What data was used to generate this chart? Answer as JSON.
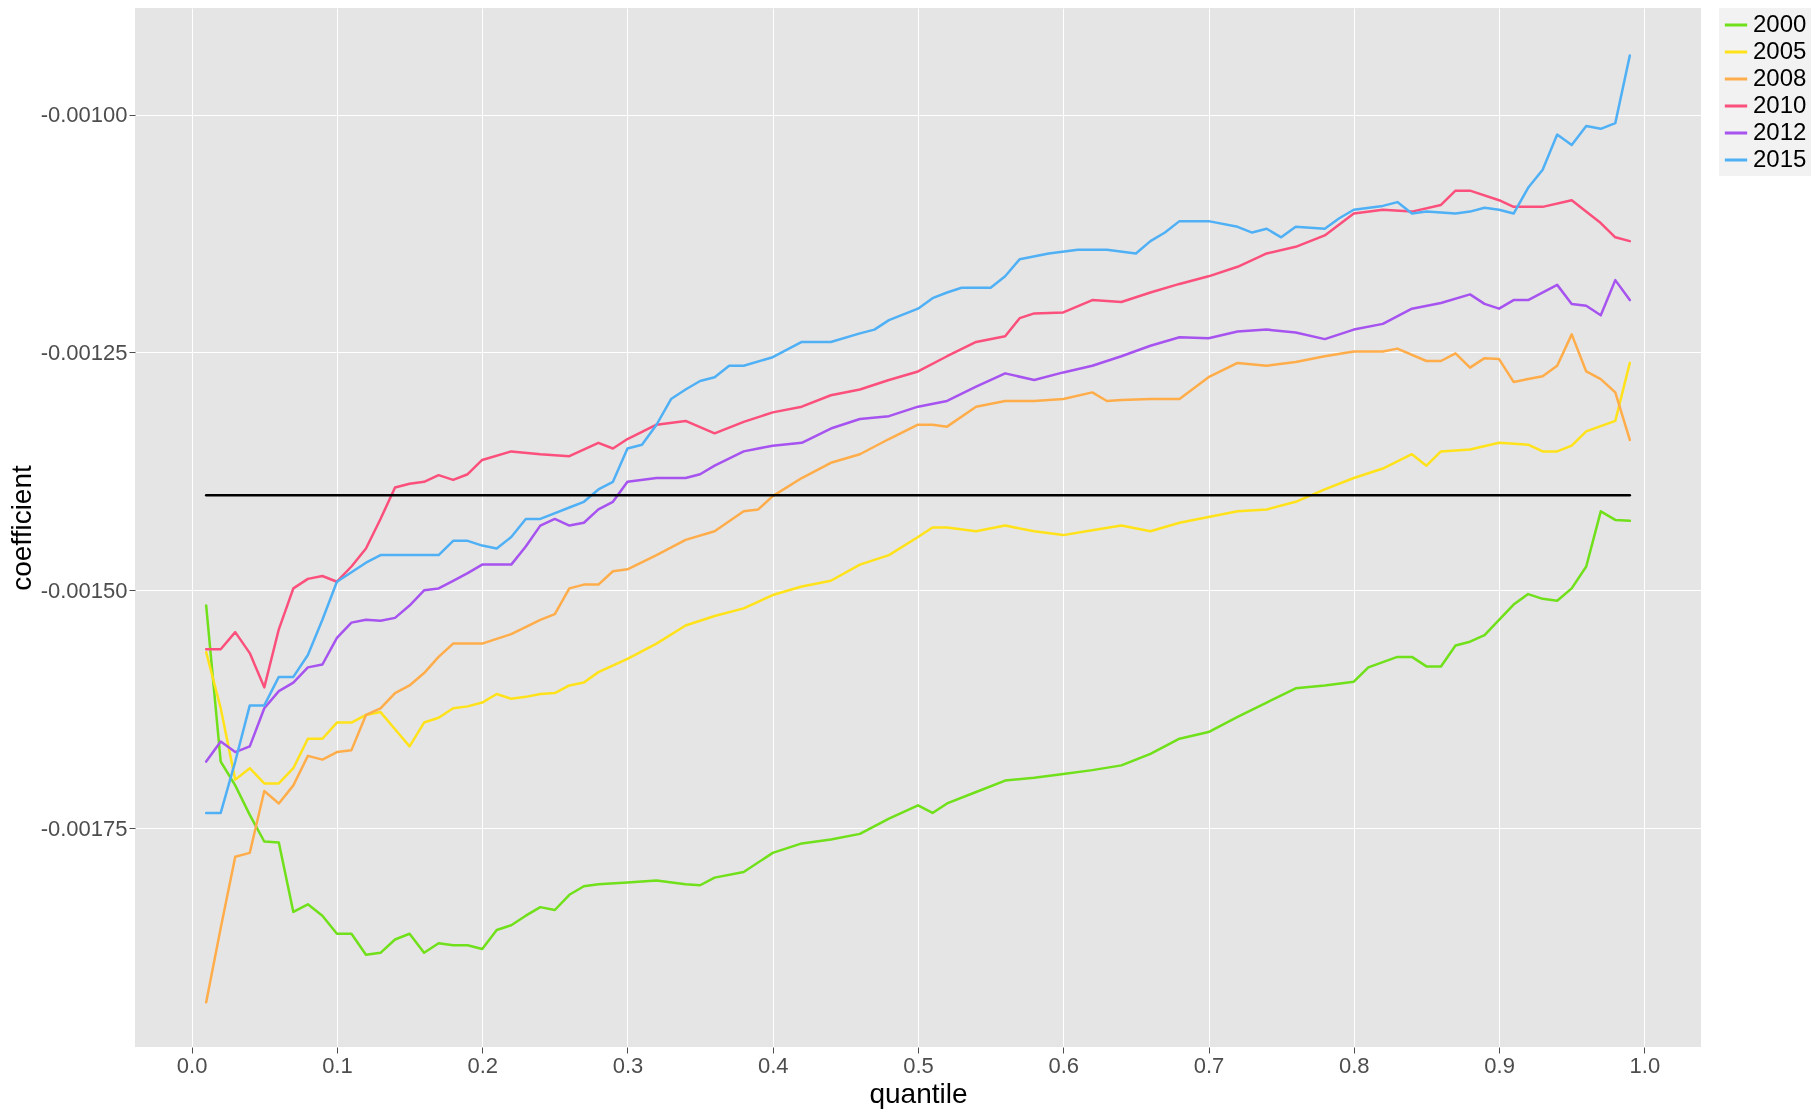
{
  "chart_data": {
    "type": "line",
    "xlabel": "quantile",
    "ylabel": "coefficient",
    "xlim": [
      -0.039,
      1.039
    ],
    "ylim": [
      -0.00198,
      -0.000888
    ],
    "xticks": [
      {
        "value": 0,
        "label": "0.0"
      },
      0.1,
      0.2,
      0.3,
      0.4,
      0.5,
      0.6,
      0.7,
      0.8,
      0.9,
      {
        "value": 1,
        "label": "1.0"
      }
    ],
    "yticks": [
      {
        "value": -0.00175,
        "label": "-0.00175"
      },
      {
        "value": -0.0015,
        "label": "-0.00150"
      },
      {
        "value": -0.00125,
        "label": "-0.00125"
      },
      {
        "value": -0.001,
        "label": "-0.00100"
      }
    ],
    "grid": true,
    "legend": "right",
    "series": [
      {
        "name": "2000",
        "color": "#70e01a",
        "x": [
          0.01,
          0.02,
          0.03,
          0.04,
          0.05,
          0.06,
          0.07,
          0.08,
          0.09,
          0.1,
          0.11,
          0.12,
          0.13,
          0.14,
          0.15,
          0.16,
          0.17,
          0.18,
          0.19,
          0.2,
          0.21,
          0.22,
          0.23,
          0.24,
          0.25,
          0.26,
          0.27,
          0.28,
          0.3,
          0.32,
          0.34,
          0.35,
          0.36,
          0.38,
          0.4,
          0.42,
          0.44,
          0.46,
          0.48,
          0.5,
          0.51,
          0.52,
          0.54,
          0.56,
          0.58,
          0.6,
          0.62,
          0.64,
          0.66,
          0.68,
          0.7,
          0.72,
          0.74,
          0.76,
          0.78,
          0.8,
          0.81,
          0.83,
          0.84,
          0.85,
          0.86,
          0.87,
          0.88,
          0.89,
          0.9,
          0.91,
          0.92,
          0.93,
          0.94,
          0.95,
          0.96,
          0.97,
          0.98,
          0.99
        ],
        "values": [
          -0.001516,
          -0.00168,
          -0.001705,
          -0.001736,
          -0.001764,
          -0.001765,
          -0.001838,
          -0.00183,
          -0.001842,
          -0.001861,
          -0.001861,
          -0.001883,
          -0.001881,
          -0.001867,
          -0.001861,
          -0.001881,
          -0.001871,
          -0.001873,
          -0.001873,
          -0.001877,
          -0.001857,
          -0.001852,
          -0.001842,
          -0.001833,
          -0.001836,
          -0.00182,
          -0.001811,
          -0.001809,
          -0.001807,
          -0.001805,
          -0.001809,
          -0.00181,
          -0.001802,
          -0.001796,
          -0.001776,
          -0.001766,
          -0.001762,
          -0.001756,
          -0.00174,
          -0.001726,
          -0.001734,
          -0.001724,
          -0.001712,
          -0.0017,
          -0.001697,
          -0.001693,
          -0.001689,
          -0.001684,
          -0.001672,
          -0.001656,
          -0.001649,
          -0.001633,
          -0.001618,
          -0.001603,
          -0.0016,
          -0.001596,
          -0.001581,
          -0.00157,
          -0.00157,
          -0.00158,
          -0.00158,
          -0.001558,
          -0.001554,
          -0.001547,
          -0.001531,
          -0.001515,
          -0.001504,
          -0.001509,
          -0.001511,
          -0.001498,
          -0.001475,
          -0.001417,
          -0.001426,
          -0.001427
        ]
      },
      {
        "name": "2005",
        "color": "#ffe21a",
        "x": [
          0.01,
          0.02,
          0.03,
          0.04,
          0.05,
          0.06,
          0.07,
          0.08,
          0.09,
          0.1,
          0.11,
          0.12,
          0.13,
          0.14,
          0.15,
          0.16,
          0.17,
          0.18,
          0.19,
          0.2,
          0.21,
          0.22,
          0.23,
          0.24,
          0.25,
          0.26,
          0.27,
          0.28,
          0.3,
          0.32,
          0.34,
          0.36,
          0.38,
          0.4,
          0.42,
          0.44,
          0.46,
          0.48,
          0.5,
          0.51,
          0.52,
          0.54,
          0.56,
          0.58,
          0.6,
          0.62,
          0.64,
          0.66,
          0.68,
          0.7,
          0.72,
          0.74,
          0.76,
          0.78,
          0.8,
          0.82,
          0.84,
          0.85,
          0.86,
          0.88,
          0.9,
          0.92,
          0.93,
          0.94,
          0.95,
          0.96,
          0.98,
          0.99
        ],
        "values": [
          -0.001565,
          -0.001624,
          -0.001699,
          -0.001687,
          -0.001703,
          -0.001703,
          -0.001687,
          -0.001656,
          -0.001656,
          -0.001639,
          -0.001639,
          -0.001631,
          -0.001628,
          -0.001646,
          -0.001664,
          -0.001639,
          -0.001634,
          -0.001624,
          -0.001622,
          -0.001618,
          -0.001609,
          -0.001614,
          -0.001612,
          -0.001609,
          -0.001608,
          -0.0016,
          -0.001597,
          -0.001586,
          -0.001572,
          -0.001556,
          -0.001537,
          -0.001527,
          -0.001519,
          -0.001505,
          -0.001496,
          -0.00149,
          -0.001473,
          -0.001463,
          -0.001444,
          -0.001434,
          -0.001434,
          -0.001438,
          -0.001432,
          -0.001438,
          -0.001442,
          -0.001437,
          -0.001432,
          -0.001438,
          -0.001429,
          -0.001423,
          -0.001417,
          -0.001415,
          -0.001407,
          -0.001394,
          -0.001382,
          -0.001372,
          -0.001357,
          -0.001369,
          -0.001354,
          -0.001352,
          -0.001345,
          -0.001347,
          -0.001354,
          -0.001354,
          -0.001348,
          -0.001333,
          -0.001322,
          -0.001261
        ]
      },
      {
        "name": "2008",
        "color": "#ffad4a",
        "x": [
          0.01,
          0.02,
          0.03,
          0.04,
          0.05,
          0.06,
          0.07,
          0.08,
          0.09,
          0.1,
          0.11,
          0.12,
          0.13,
          0.14,
          0.15,
          0.16,
          0.17,
          0.18,
          0.2,
          0.22,
          0.24,
          0.25,
          0.26,
          0.27,
          0.28,
          0.29,
          0.3,
          0.32,
          0.34,
          0.36,
          0.38,
          0.39,
          0.4,
          0.42,
          0.44,
          0.46,
          0.48,
          0.5,
          0.51,
          0.52,
          0.54,
          0.56,
          0.58,
          0.6,
          0.62,
          0.63,
          0.64,
          0.66,
          0.68,
          0.7,
          0.72,
          0.74,
          0.76,
          0.78,
          0.8,
          0.82,
          0.83,
          0.85,
          0.86,
          0.87,
          0.88,
          0.89,
          0.9,
          0.91,
          0.92,
          0.93,
          0.94,
          0.95,
          0.96,
          0.97,
          0.98,
          0.99
        ],
        "values": [
          -0.001933,
          -0.001855,
          -0.00178,
          -0.001776,
          -0.001711,
          -0.001724,
          -0.001705,
          -0.001674,
          -0.001678,
          -0.00167,
          -0.001668,
          -0.001631,
          -0.001624,
          -0.001608,
          -0.0016,
          -0.001587,
          -0.00157,
          -0.001556,
          -0.001556,
          -0.001546,
          -0.001531,
          -0.001525,
          -0.001498,
          -0.001494,
          -0.001494,
          -0.00148,
          -0.001478,
          -0.001463,
          -0.001447,
          -0.001438,
          -0.001417,
          -0.001415,
          -0.001401,
          -0.001382,
          -0.001366,
          -0.001357,
          -0.001341,
          -0.001326,
          -0.001326,
          -0.001328,
          -0.001307,
          -0.001301,
          -0.001301,
          -0.001299,
          -0.001292,
          -0.001301,
          -0.0013,
          -0.001299,
          -0.001299,
          -0.001276,
          -0.001261,
          -0.001264,
          -0.00126,
          -0.001254,
          -0.001249,
          -0.001249,
          -0.001246,
          -0.001259,
          -0.001259,
          -0.001251,
          -0.001266,
          -0.001256,
          -0.001257,
          -0.001281,
          -0.001278,
          -0.001275,
          -0.001264,
          -0.001231,
          -0.00127,
          -0.001278,
          -0.001292,
          -0.001342
        ]
      },
      {
        "name": "2010",
        "color": "#fb4f7c",
        "x": [
          0.01,
          0.02,
          0.03,
          0.04,
          0.05,
          0.06,
          0.07,
          0.08,
          0.09,
          0.1,
          0.11,
          0.12,
          0.13,
          0.14,
          0.15,
          0.16,
          0.17,
          0.18,
          0.19,
          0.2,
          0.22,
          0.24,
          0.26,
          0.28,
          0.29,
          0.3,
          0.32,
          0.34,
          0.36,
          0.38,
          0.4,
          0.42,
          0.44,
          0.46,
          0.48,
          0.5,
          0.52,
          0.54,
          0.56,
          0.57,
          0.58,
          0.6,
          0.62,
          0.64,
          0.66,
          0.68,
          0.7,
          0.72,
          0.74,
          0.76,
          0.78,
          0.8,
          0.82,
          0.84,
          0.86,
          0.87,
          0.88,
          0.9,
          0.91,
          0.93,
          0.95,
          0.97,
          0.98,
          0.99
        ],
        "values": [
          -0.001562,
          -0.001562,
          -0.001544,
          -0.001566,
          -0.001602,
          -0.001541,
          -0.001498,
          -0.001488,
          -0.001485,
          -0.001491,
          -0.001475,
          -0.001456,
          -0.001425,
          -0.001392,
          -0.001388,
          -0.001386,
          -0.001379,
          -0.001384,
          -0.001378,
          -0.001363,
          -0.001354,
          -0.001357,
          -0.001359,
          -0.001345,
          -0.001351,
          -0.001341,
          -0.001326,
          -0.001322,
          -0.001335,
          -0.001323,
          -0.001313,
          -0.001307,
          -0.001295,
          -0.001289,
          -0.001279,
          -0.00127,
          -0.001254,
          -0.001239,
          -0.001233,
          -0.001214,
          -0.001209,
          -0.001208,
          -0.001195,
          -0.001197,
          -0.001187,
          -0.001178,
          -0.00117,
          -0.00116,
          -0.001146,
          -0.001139,
          -0.001127,
          -0.001104,
          -0.0011,
          -0.001102,
          -0.001095,
          -0.00108,
          -0.00108,
          -0.00109,
          -0.001097,
          -0.001097,
          -0.00109,
          -0.001114,
          -0.001129,
          -0.001133
        ]
      },
      {
        "name": "2012",
        "color": "#a653ef",
        "x": [
          0.01,
          0.02,
          0.03,
          0.04,
          0.05,
          0.06,
          0.07,
          0.08,
          0.09,
          0.1,
          0.11,
          0.12,
          0.13,
          0.14,
          0.15,
          0.16,
          0.17,
          0.18,
          0.19,
          0.2,
          0.22,
          0.23,
          0.24,
          0.25,
          0.26,
          0.27,
          0.28,
          0.29,
          0.3,
          0.32,
          0.34,
          0.35,
          0.36,
          0.38,
          0.4,
          0.42,
          0.44,
          0.46,
          0.48,
          0.5,
          0.52,
          0.54,
          0.56,
          0.58,
          0.6,
          0.62,
          0.64,
          0.66,
          0.68,
          0.7,
          0.72,
          0.74,
          0.76,
          0.78,
          0.8,
          0.82,
          0.84,
          0.86,
          0.88,
          0.89,
          0.9,
          0.91,
          0.92,
          0.94,
          0.95,
          0.96,
          0.97,
          0.98,
          0.99
        ],
        "values": [
          -0.00168,
          -0.001659,
          -0.00167,
          -0.001664,
          -0.001624,
          -0.001606,
          -0.001597,
          -0.001581,
          -0.001578,
          -0.00155,
          -0.001534,
          -0.001531,
          -0.001532,
          -0.001529,
          -0.001516,
          -0.0015,
          -0.001498,
          -0.00149,
          -0.001482,
          -0.001473,
          -0.001473,
          -0.001454,
          -0.001432,
          -0.001425,
          -0.001432,
          -0.001429,
          -0.001415,
          -0.001407,
          -0.001386,
          -0.001382,
          -0.001382,
          -0.001378,
          -0.001369,
          -0.001354,
          -0.001348,
          -0.001345,
          -0.00133,
          -0.00132,
          -0.001317,
          -0.001307,
          -0.001301,
          -0.001286,
          -0.001272,
          -0.001279,
          -0.001271,
          -0.001264,
          -0.001254,
          -0.001243,
          -0.001234,
          -0.001235,
          -0.001228,
          -0.001226,
          -0.001229,
          -0.001236,
          -0.001226,
          -0.00122,
          -0.001204,
          -0.001198,
          -0.001189,
          -0.001199,
          -0.001204,
          -0.001195,
          -0.001195,
          -0.001179,
          -0.001199,
          -0.001201,
          -0.001211,
          -0.001174,
          -0.001195
        ]
      },
      {
        "name": "2015",
        "color": "#4fb0f5",
        "x": [
          0.01,
          0.02,
          0.03,
          0.04,
          0.05,
          0.06,
          0.07,
          0.08,
          0.09,
          0.1,
          0.11,
          0.12,
          0.13,
          0.14,
          0.15,
          0.16,
          0.17,
          0.18,
          0.19,
          0.2,
          0.21,
          0.22,
          0.23,
          0.24,
          0.26,
          0.27,
          0.28,
          0.29,
          0.3,
          0.31,
          0.32,
          0.33,
          0.34,
          0.35,
          0.36,
          0.37,
          0.38,
          0.4,
          0.42,
          0.44,
          0.46,
          0.47,
          0.48,
          0.5,
          0.51,
          0.52,
          0.53,
          0.55,
          0.56,
          0.57,
          0.59,
          0.61,
          0.63,
          0.65,
          0.66,
          0.67,
          0.68,
          0.7,
          0.72,
          0.73,
          0.74,
          0.75,
          0.76,
          0.78,
          0.79,
          0.8,
          0.82,
          0.83,
          0.84,
          0.85,
          0.87,
          0.88,
          0.89,
          0.9,
          0.91,
          0.92,
          0.93,
          0.94,
          0.95,
          0.96,
          0.97,
          0.98,
          0.99
        ],
        "values": [
          -0.001734,
          -0.001734,
          -0.00168,
          -0.001621,
          -0.001621,
          -0.001591,
          -0.001591,
          -0.001568,
          -0.001531,
          -0.001491,
          -0.001481,
          -0.001471,
          -0.001463,
          -0.001463,
          -0.001463,
          -0.001463,
          -0.001463,
          -0.001448,
          -0.001448,
          -0.001453,
          -0.001456,
          -0.001444,
          -0.001425,
          -0.001425,
          -0.001413,
          -0.001407,
          -0.001394,
          -0.001386,
          -0.001351,
          -0.001347,
          -0.001326,
          -0.001299,
          -0.001289,
          -0.00128,
          -0.001276,
          -0.001264,
          -0.001264,
          -0.001255,
          -0.001239,
          -0.001239,
          -0.00123,
          -0.001226,
          -0.001216,
          -0.001204,
          -0.001193,
          -0.001187,
          -0.001182,
          -0.001182,
          -0.00117,
          -0.001152,
          -0.001146,
          -0.001142,
          -0.001142,
          -0.001146,
          -0.001133,
          -0.001124,
          -0.001112,
          -0.001112,
          -0.001118,
          -0.001124,
          -0.00112,
          -0.001129,
          -0.001118,
          -0.00112,
          -0.001109,
          -0.0011,
          -0.001096,
          -0.001092,
          -0.001104,
          -0.001102,
          -0.001104,
          -0.001102,
          -0.001098,
          -0.0011,
          -0.001104,
          -0.001077,
          -0.001058,
          -0.001021,
          -0.001032,
          -0.001012,
          -0.001015,
          -0.001009,
          -0.000938
        ]
      },
      {
        "color": "#000000",
        "x": [
          0.01,
          0.99
        ],
        "values": [
          -0.0014,
          -0.0014
        ]
      }
    ]
  }
}
